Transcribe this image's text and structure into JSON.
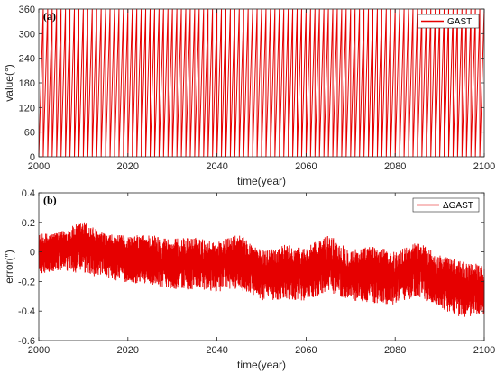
{
  "colors": {
    "series": "#e60000",
    "axis": "#262626",
    "background": "#ffffff"
  },
  "chart_data": [
    {
      "type": "line",
      "panel_label": "(a)",
      "xlabel": "time(year)",
      "ylabel": "value(°)",
      "xlim": [
        2000,
        2100
      ],
      "ylim": [
        0,
        360
      ],
      "xticks": [
        2000,
        2020,
        2040,
        2060,
        2080,
        2100
      ],
      "yticks": [
        0,
        60,
        120,
        180,
        240,
        300,
        360
      ],
      "grid": false,
      "legend_position": "top-right",
      "series": [
        {
          "name": "GAST",
          "pattern": "sawtooth",
          "cycles_per_year": 1,
          "range": [
            0,
            360
          ]
        }
      ]
    },
    {
      "type": "line",
      "panel_label": "(b)",
      "xlabel": "time(year)",
      "ylabel": "error(″)",
      "xlim": [
        2000,
        2100
      ],
      "ylim": [
        -0.6,
        0.4
      ],
      "xticks": [
        2000,
        2020,
        2040,
        2060,
        2080,
        2100
      ],
      "yticks": [
        -0.6,
        -0.4,
        -0.2,
        0,
        0.2,
        0.4
      ],
      "grid": false,
      "legend_position": "top-right",
      "series": [
        {
          "name": "ΔGAST",
          "x": [
            2000,
            2005,
            2010,
            2015,
            2020,
            2025,
            2030,
            2035,
            2040,
            2045,
            2050,
            2055,
            2060,
            2065,
            2070,
            2075,
            2080,
            2085,
            2090,
            2095,
            2100
          ],
          "center": [
            -0.01,
            0.01,
            0.03,
            -0.02,
            -0.05,
            -0.04,
            -0.08,
            -0.07,
            -0.09,
            -0.07,
            -0.14,
            -0.12,
            -0.13,
            -0.08,
            -0.15,
            -0.14,
            -0.17,
            -0.07,
            -0.18,
            -0.22,
            -0.26
          ],
          "upper": [
            0.12,
            0.14,
            0.21,
            0.12,
            0.11,
            0.12,
            0.09,
            0.1,
            0.07,
            0.12,
            0.01,
            0.05,
            0.03,
            0.12,
            0.02,
            0.04,
            0.0,
            0.07,
            -0.02,
            -0.06,
            -0.09
          ],
          "lower": [
            -0.15,
            -0.13,
            -0.15,
            -0.18,
            -0.21,
            -0.22,
            -0.25,
            -0.26,
            -0.27,
            -0.25,
            -0.33,
            -0.32,
            -0.33,
            -0.27,
            -0.33,
            -0.35,
            -0.36,
            -0.3,
            -0.38,
            -0.45,
            -0.42
          ]
        }
      ]
    }
  ]
}
